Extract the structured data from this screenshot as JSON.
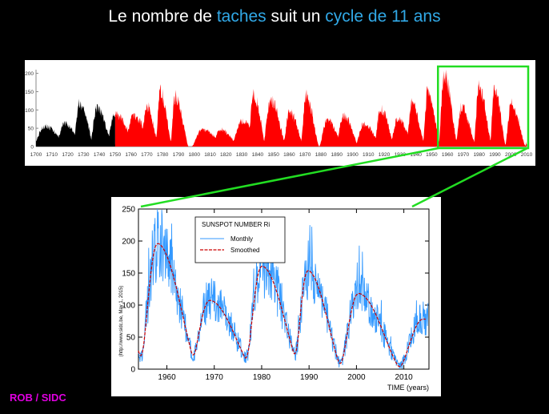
{
  "title": {
    "part1": "Le nombre de ",
    "part2": "taches",
    "part3": " suit un ",
    "part4": "cycle de 11 ans"
  },
  "credit": "ROB / SIDC",
  "colors": {
    "title_highlight": "#31a8e6",
    "pre_1750": "#000000",
    "post_1750": "#ff0000",
    "highlight_box": "#22dd22",
    "monthly": "#3399ff",
    "smoothed": "#cc0000",
    "credit": "#e000e0"
  },
  "chart_data": [
    {
      "type": "area",
      "title": "",
      "xlabel": "",
      "ylabel": "",
      "xlim": [
        1700,
        2010
      ],
      "ylim": [
        0,
        210
      ],
      "x_ticks": [
        "1700",
        "1710",
        "1720",
        "1730",
        "1740",
        "1750",
        "1760",
        "1770",
        "1780",
        "1790",
        "1800",
        "1810",
        "1820",
        "1830",
        "1840",
        "1850",
        "1860",
        "1870",
        "1880",
        "1890",
        "1900",
        "1910",
        "1920",
        "1930",
        "1940",
        "1950",
        "1960",
        "1970",
        "1980",
        "1990",
        "2000",
        "2010"
      ],
      "y_ticks": [
        "0",
        "50",
        "100",
        "150",
        "200"
      ],
      "cycles": [
        {
          "min": 1698,
          "max": 1705.5,
          "peak": 58
        },
        {
          "min": 1712,
          "max": 1718,
          "peak": 63
        },
        {
          "min": 1723.5,
          "max": 1727.5,
          "peak": 122
        },
        {
          "min": 1734,
          "max": 1738.5,
          "peak": 111
        },
        {
          "min": 1744,
          "max": 1750.3,
          "peak": 92
        },
        {
          "min": 1755.2,
          "max": 1761.5,
          "peak": 86
        },
        {
          "min": 1766.5,
          "max": 1769.7,
          "peak": 116
        },
        {
          "min": 1775.5,
          "max": 1778.4,
          "peak": 158
        },
        {
          "min": 1784.7,
          "max": 1788.1,
          "peak": 141
        },
        {
          "min": 1798.3,
          "max": 1805.2,
          "peak": 49
        },
        {
          "min": 1810.6,
          "max": 1816.4,
          "peak": 48
        },
        {
          "min": 1823.3,
          "max": 1829.9,
          "peak": 71
        },
        {
          "min": 1833.9,
          "max": 1837.2,
          "peak": 146
        },
        {
          "min": 1843.5,
          "max": 1848.1,
          "peak": 131
        },
        {
          "min": 1856,
          "max": 1860.1,
          "peak": 97
        },
        {
          "min": 1867.2,
          "max": 1870.6,
          "peak": 140
        },
        {
          "min": 1878.9,
          "max": 1883.9,
          "peak": 74
        },
        {
          "min": 1889.6,
          "max": 1894.1,
          "peak": 88
        },
        {
          "min": 1901.7,
          "max": 1907,
          "peak": 64
        },
        {
          "min": 1913.6,
          "max": 1917.6,
          "peak": 105
        },
        {
          "min": 1923.6,
          "max": 1928.4,
          "peak": 78
        },
        {
          "min": 1933.8,
          "max": 1937.4,
          "peak": 119
        },
        {
          "min": 1944.2,
          "max": 1947.5,
          "peak": 151
        },
        {
          "min": 1954.3,
          "max": 1957.9,
          "peak": 201
        },
        {
          "min": 1964.9,
          "max": 1968.9,
          "peak": 110
        },
        {
          "min": 1976.5,
          "max": 1979.9,
          "peak": 165
        },
        {
          "min": 1986.8,
          "max": 1989.6,
          "peak": 158
        },
        {
          "min": 1996.4,
          "max": 2000.3,
          "peak": 121
        },
        {
          "min": 2008.9,
          "max": 2014,
          "peak": 80
        }
      ],
      "series_split_year": 1750,
      "highlight_range": [
        1954,
        2014
      ]
    },
    {
      "type": "line",
      "title": "SUNSPOT NUMBER Ri",
      "xlabel": "TIME (years)",
      "ylabel": "(http://www.sidc.be, May 1, 2015)",
      "xlim": [
        1954,
        2015.3
      ],
      "ylim": [
        0,
        250
      ],
      "x_ticks": [
        "1960",
        "1970",
        "1980",
        "1990",
        "2000",
        "2010"
      ],
      "y_ticks": [
        "0",
        "50",
        "100",
        "150",
        "200",
        "250"
      ],
      "series": [
        {
          "name": "Monthly"
        },
        {
          "name": "Smoothed"
        }
      ]
    }
  ]
}
